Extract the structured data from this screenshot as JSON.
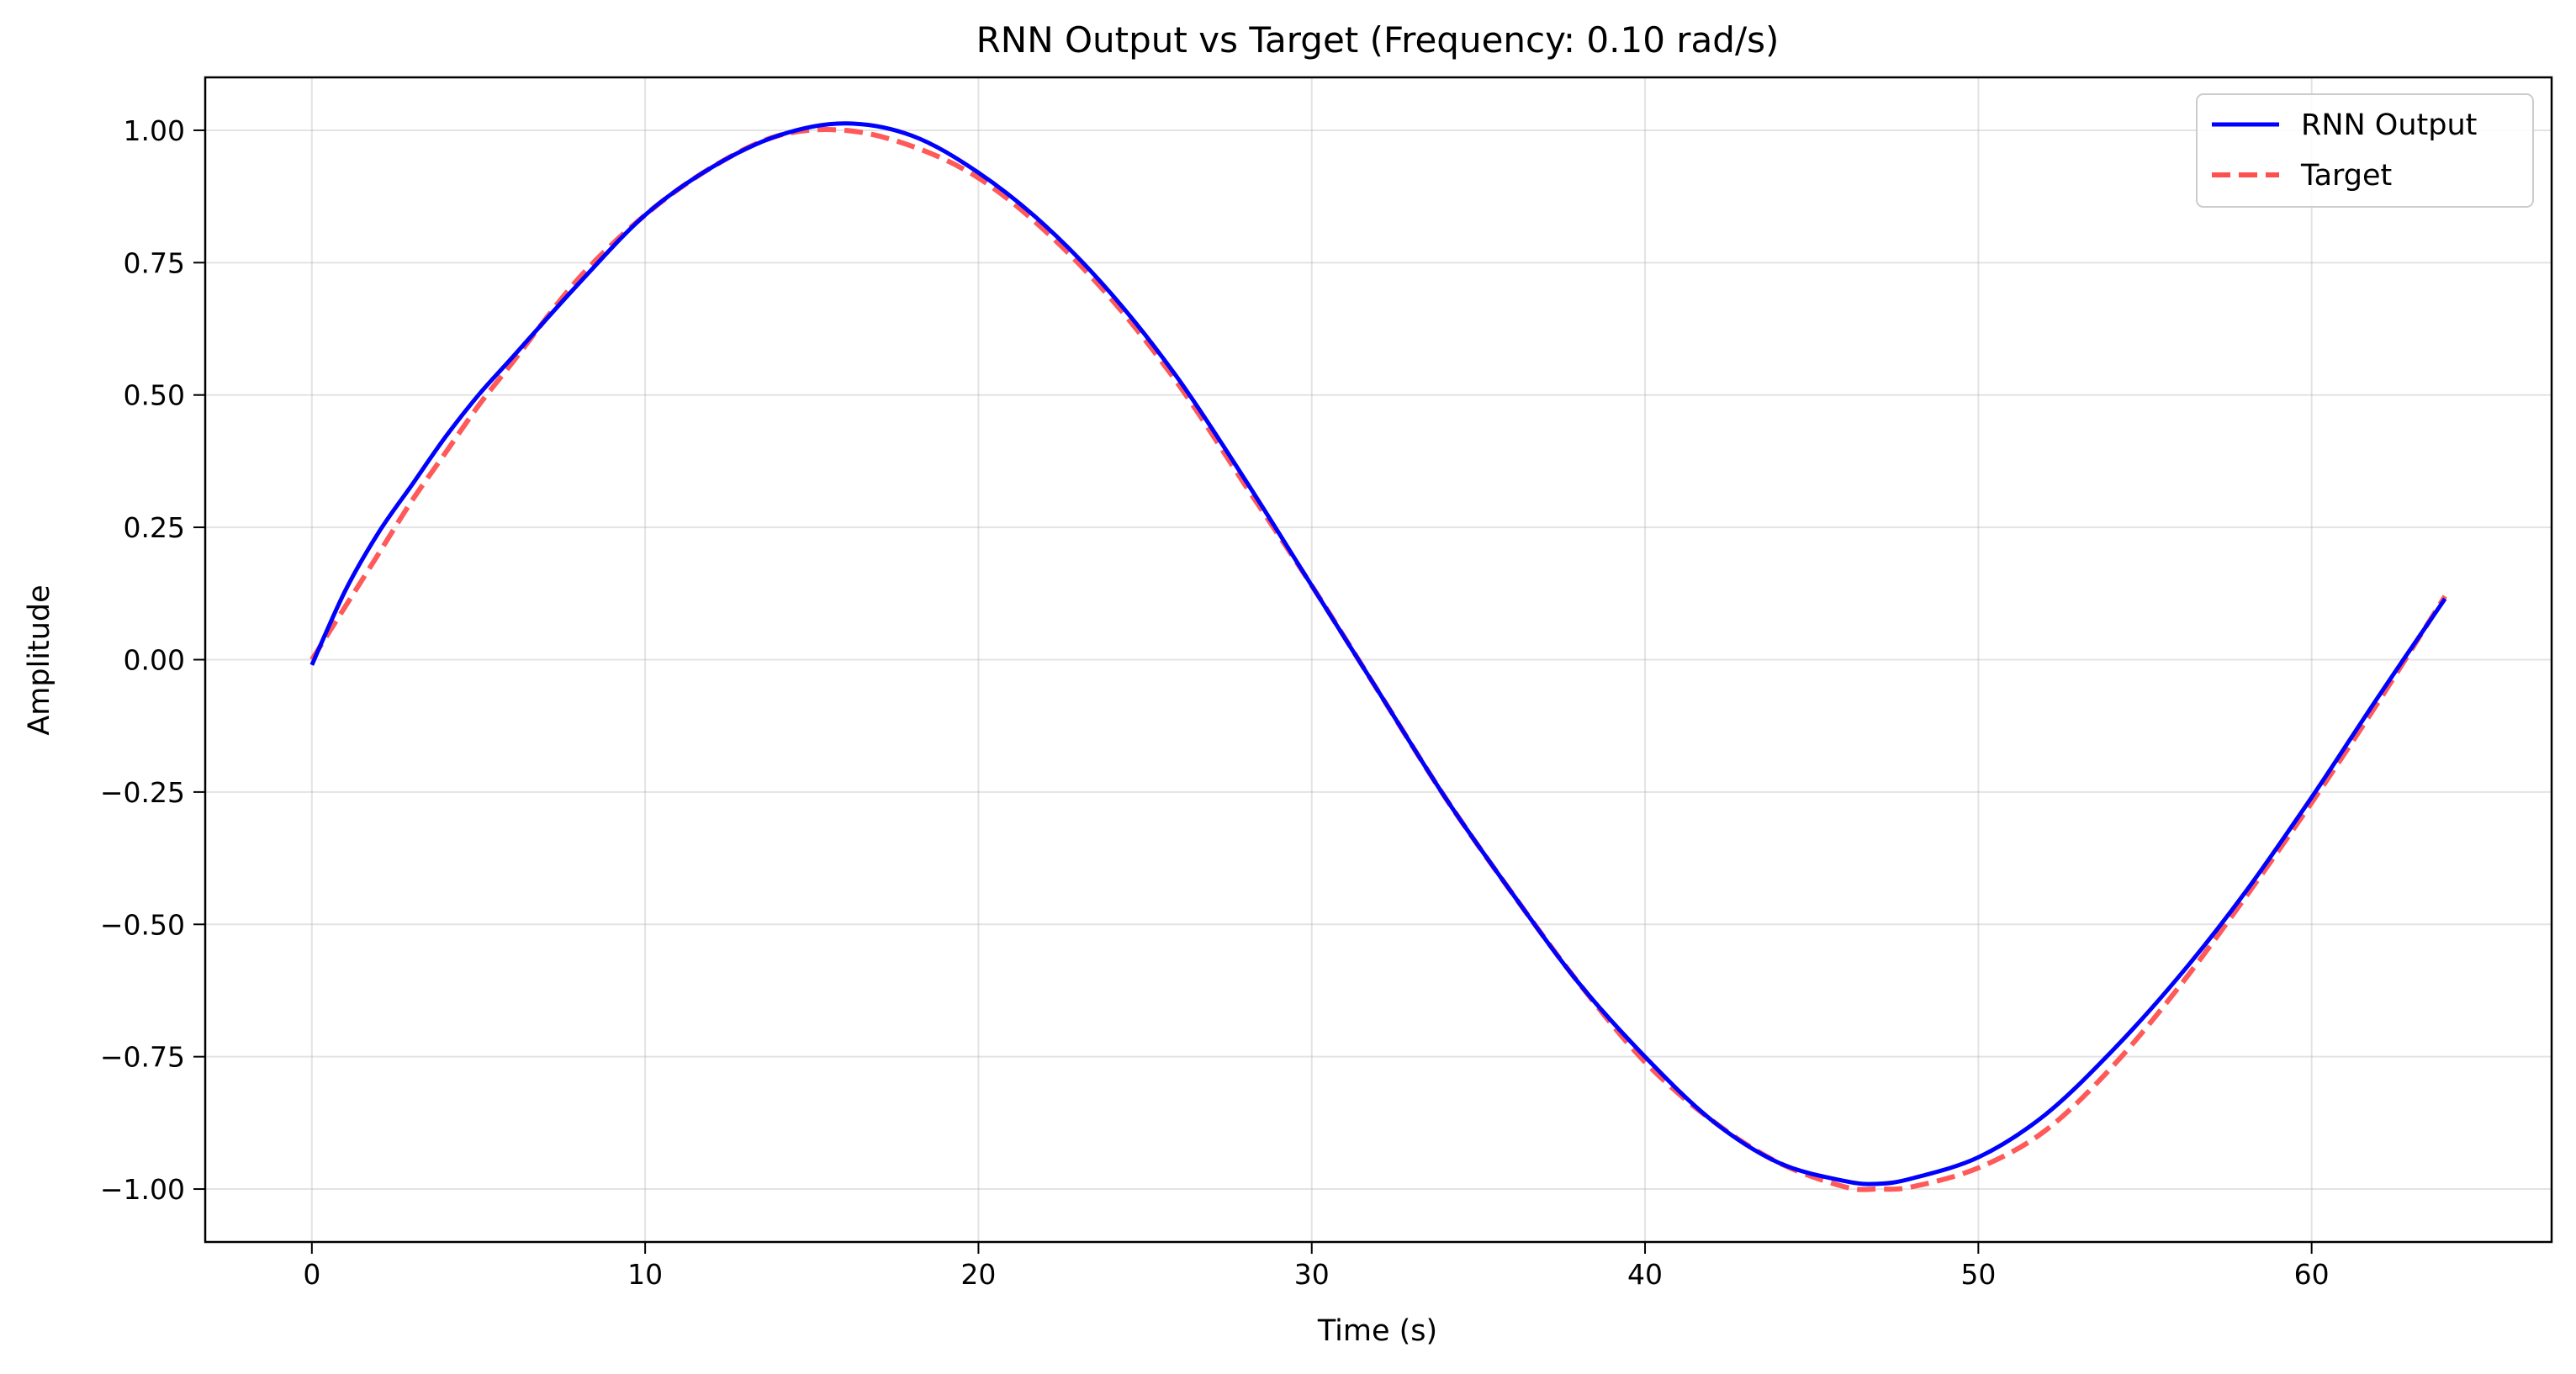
{
  "chart_data": {
    "type": "line",
    "title": "RNN Output vs Target (Frequency: 0.10 rad/s)",
    "xlabel": "Time (s)",
    "ylabel": "Amplitude",
    "xlim": [
      -3.2,
      67.2
    ],
    "ylim": [
      -1.1,
      1.1
    ],
    "xticks": [
      0,
      10,
      20,
      30,
      40,
      50,
      60
    ],
    "yticks": [
      1.0,
      0.75,
      0.5,
      0.25,
      0.0,
      -0.25,
      -0.5,
      -0.75,
      -1.0
    ],
    "xtick_labels": [
      "0",
      "10",
      "20",
      "30",
      "40",
      "50",
      "60"
    ],
    "ytick_labels": [
      "1.00",
      "0.75",
      "0.50",
      "0.25",
      "0.00",
      "−0.25",
      "−0.50",
      "−0.75",
      "−1.00"
    ],
    "grid": true,
    "legend_position": "top-right",
    "series": [
      {
        "name": "RNN Output",
        "color": "#0000ff",
        "style": "solid",
        "x": [
          0,
          1,
          2,
          3,
          4,
          5,
          6,
          8,
          10,
          12,
          14,
          16,
          18,
          20,
          22,
          24,
          26,
          28,
          30,
          32,
          34,
          36,
          38,
          40,
          42,
          44,
          46,
          47,
          48,
          50,
          52,
          54,
          56,
          58,
          60,
          62,
          64
        ],
        "y": [
          -0.01,
          0.13,
          0.24,
          0.33,
          0.42,
          0.5,
          0.57,
          0.71,
          0.84,
          0.93,
          0.99,
          1.013,
          0.99,
          0.92,
          0.82,
          0.69,
          0.53,
          0.34,
          0.14,
          -0.06,
          -0.26,
          -0.44,
          -0.61,
          -0.75,
          -0.87,
          -0.95,
          -0.985,
          -0.99,
          -0.98,
          -0.94,
          -0.86,
          -0.74,
          -0.6,
          -0.44,
          -0.26,
          -0.07,
          0.115
        ]
      },
      {
        "name": "Target",
        "color": "#ff5050",
        "style": "dashed",
        "x": [
          0,
          1,
          2,
          3,
          4,
          5,
          6,
          8,
          10,
          12,
          14,
          16,
          18,
          20,
          22,
          24,
          26,
          28,
          30,
          32,
          34,
          36,
          38,
          40,
          42,
          44,
          46,
          47,
          48,
          50,
          52,
          54,
          56,
          58,
          60,
          62,
          64
        ],
        "y": [
          0.0,
          0.1,
          0.2,
          0.3,
          0.39,
          0.48,
          0.56,
          0.72,
          0.84,
          0.93,
          0.99,
          1.0,
          0.97,
          0.91,
          0.81,
          0.68,
          0.52,
          0.33,
          0.14,
          -0.06,
          -0.26,
          -0.44,
          -0.61,
          -0.76,
          -0.87,
          -0.95,
          -0.996,
          -1.0,
          -0.996,
          -0.96,
          -0.89,
          -0.77,
          -0.62,
          -0.45,
          -0.27,
          -0.08,
          0.12
        ]
      }
    ]
  }
}
